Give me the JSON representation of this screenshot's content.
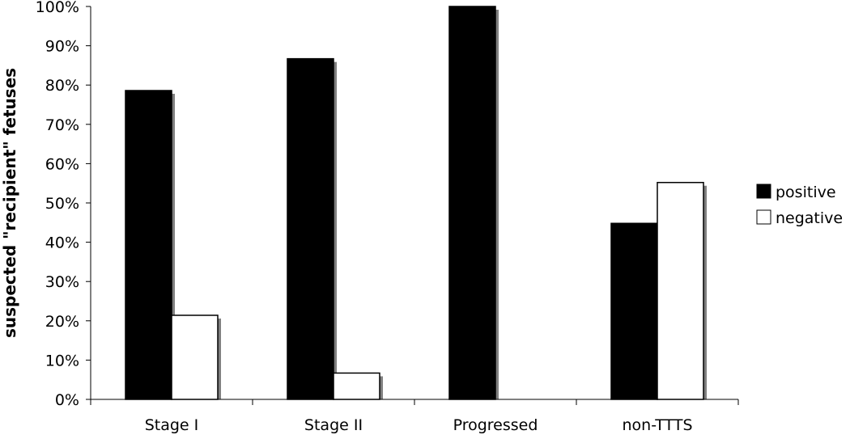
{
  "chart_data": {
    "type": "bar",
    "title": "",
    "xlabel": "",
    "ylabel": "suspected \"recipient\" fetuses",
    "categories": [
      "Stage I",
      "Stage II",
      "Progressed",
      "non-TTTS"
    ],
    "series": [
      {
        "name": "positive",
        "values": [
          78.6,
          86.7,
          100,
          44.8
        ],
        "fill": "#000000",
        "stroke": "#000000"
      },
      {
        "name": "negative",
        "values": [
          21.4,
          6.7,
          0,
          55.2
        ],
        "fill": "#ffffff",
        "stroke": "#000000"
      }
    ],
    "ylim": [
      0,
      100
    ],
    "yticks": [
      "0%",
      "10%",
      "20%",
      "30%",
      "40%",
      "50%",
      "60%",
      "70%",
      "80%",
      "90%",
      "100%"
    ],
    "grid": false,
    "legend_position": "right",
    "shadow_color": "#808080"
  }
}
